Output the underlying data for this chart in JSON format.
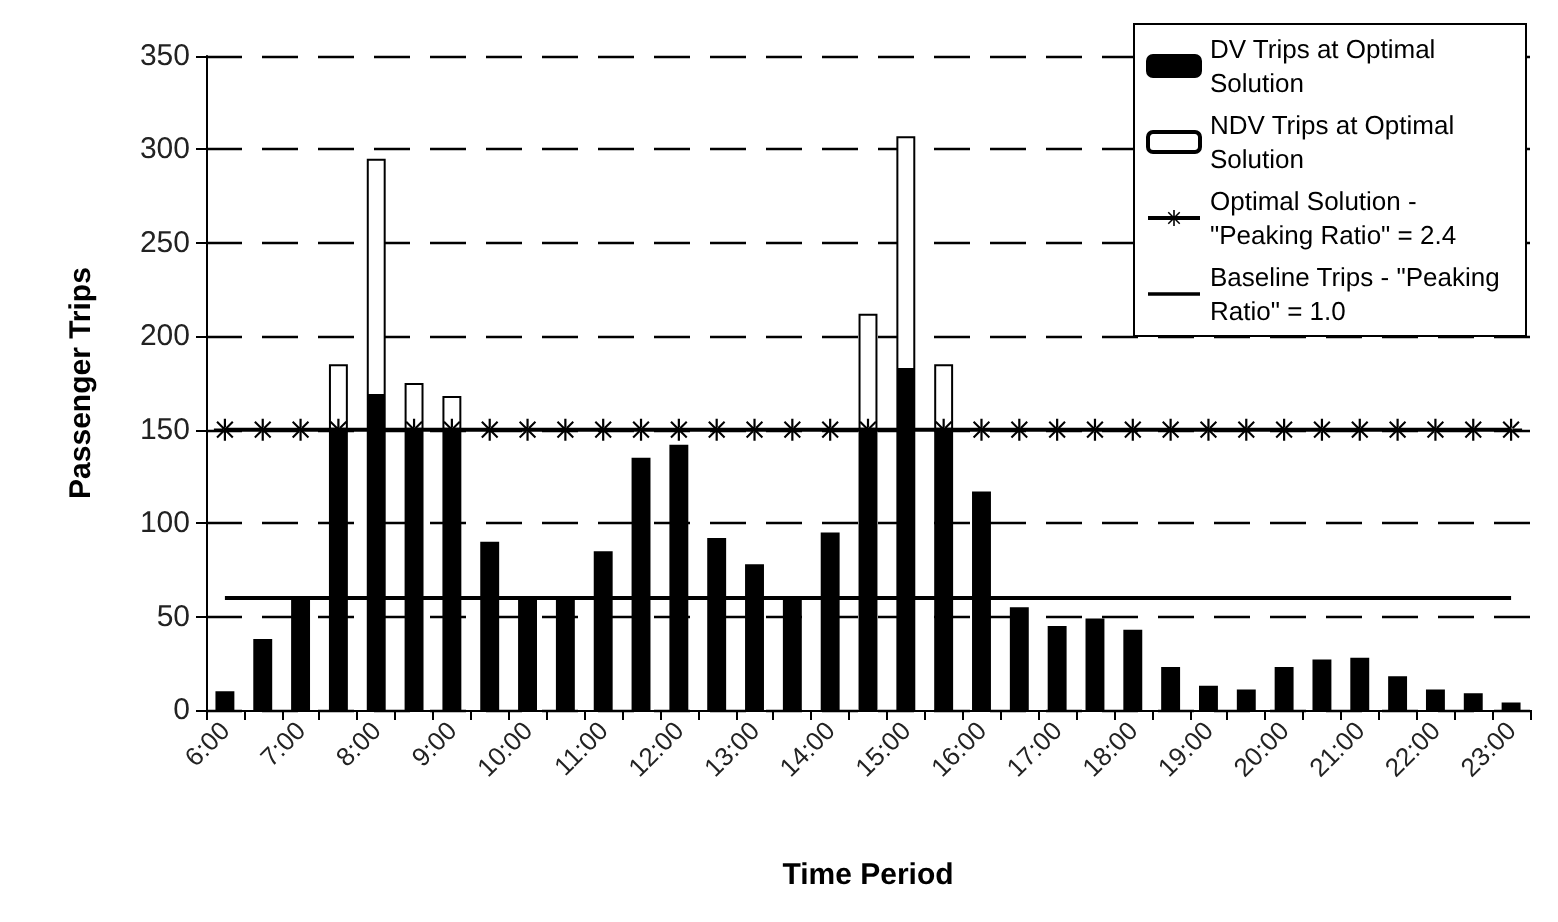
{
  "chart_data": {
    "type": "bar",
    "stacked": true,
    "xlabel": "Time Period",
    "ylabel": "Passenger Trips",
    "categories": [
      "6:00",
      null,
      "7:00",
      null,
      "8:00",
      null,
      "9:00",
      null,
      "10:00",
      null,
      "11:00",
      null,
      "12:00",
      null,
      "13:00",
      null,
      "14:00",
      null,
      "15:00",
      null,
      "16:00",
      null,
      "17:00",
      null,
      "18:00",
      null,
      "19:00",
      null,
      "20:00",
      null,
      "21:00",
      null,
      "22:00",
      null,
      "23:00"
    ],
    "series": [
      {
        "name": "DV Trips at Optimal Solution",
        "color": "#000000",
        "values": [
          10,
          38,
          60,
          150,
          168,
          150,
          150,
          90,
          60,
          60,
          85,
          135,
          142,
          92,
          78,
          60,
          95,
          150,
          182,
          150,
          117,
          55,
          45,
          49,
          43,
          23,
          13,
          11,
          23,
          27,
          28,
          18,
          11,
          9,
          4
        ]
      },
      {
        "name": "NDV Trips at Optimal Solution",
        "color": "#ffffff",
        "values": [
          null,
          null,
          null,
          35,
          127,
          25,
          18,
          null,
          null,
          null,
          null,
          null,
          null,
          null,
          null,
          null,
          null,
          62,
          125,
          35,
          null,
          null,
          null,
          null,
          null,
          null,
          null,
          null,
          null,
          null,
          null,
          null,
          null,
          null,
          null
        ]
      },
      {
        "name": "Optimal Solution - \"Peaking Ratio\" = 2.4",
        "type": "line",
        "marker": "star",
        "color": "#000000",
        "values": [
          150,
          150,
          150,
          150,
          150,
          150,
          150,
          150,
          150,
          150,
          150,
          150,
          150,
          150,
          150,
          150,
          150,
          150,
          150,
          150,
          150,
          150,
          150,
          150,
          150,
          150,
          150,
          150,
          150,
          150,
          150,
          150,
          150,
          150,
          150
        ]
      },
      {
        "name": "Baseline Trips - \"Peaking Ratio\" = 1.0",
        "type": "line",
        "marker": "none",
        "color": "#000000",
        "values": [
          60,
          60,
          60,
          60,
          60,
          60,
          60,
          60,
          60,
          60,
          60,
          60,
          60,
          60,
          60,
          60,
          60,
          60,
          60,
          60,
          60,
          60,
          60,
          60,
          60,
          60,
          60,
          60,
          60,
          60,
          60,
          60,
          60,
          60,
          60
        ]
      }
    ],
    "ylim": [
      0,
      350
    ],
    "yticks": [
      0,
      50,
      100,
      150,
      200,
      250,
      300,
      350
    ],
    "grid": "y",
    "legend": "top right"
  }
}
